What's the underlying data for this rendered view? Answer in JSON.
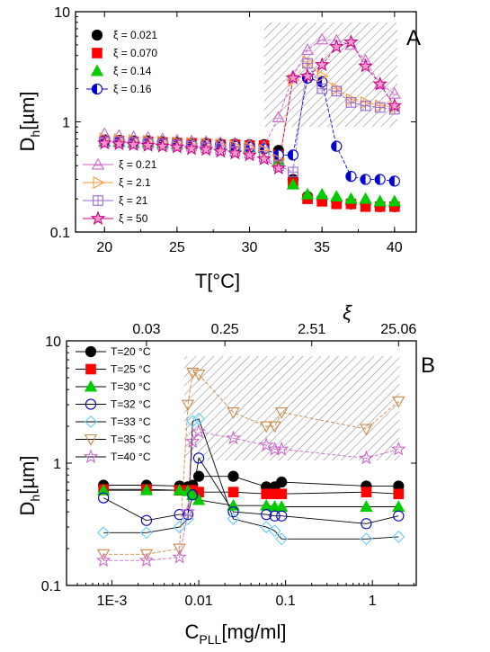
{
  "chart_data": [
    {
      "type": "scatter",
      "panel_label": "A",
      "xlabel": "T[°C]",
      "ylabel_main": "D",
      "ylabel_sub": "h",
      "ylabel_rest": "[µm]",
      "xlim": [
        18,
        41.5
      ],
      "ylim": [
        0.1,
        10
      ],
      "yscale": "log",
      "xticks": [
        20,
        25,
        30,
        35,
        40
      ],
      "xtick_labels": [
        "20",
        "25",
        "30",
        "35",
        "40"
      ],
      "yticks": [
        0.1,
        1,
        10
      ],
      "ytick_labels": [
        "0.1",
        "1",
        "10"
      ],
      "shaded_region": {
        "x": [
          31.0,
          40.2
        ],
        "y": [
          0.9,
          8.0
        ]
      },
      "legend_top": [
        0,
        1,
        2,
        3
      ],
      "legend_bottom": [
        4,
        5,
        6,
        7
      ],
      "series": [
        {
          "name": "ξ = 0.021",
          "marker": "circle",
          "color": "#000000",
          "fill": "#000000",
          "x": [
            20,
            21,
            22,
            23,
            24,
            25,
            26,
            27,
            28,
            29,
            30,
            31,
            32,
            33,
            34,
            35,
            36,
            37,
            38,
            39,
            40
          ],
          "y": [
            0.68,
            0.68,
            0.67,
            0.67,
            0.66,
            0.65,
            0.64,
            0.64,
            0.63,
            0.63,
            0.62,
            0.62,
            0.55,
            0.3,
            0.21,
            0.2,
            0.19,
            0.18,
            0.18,
            0.17,
            0.17
          ]
        },
        {
          "name": "ξ = 0.070",
          "marker": "square",
          "color": "#ff0000",
          "fill": "#ff0000",
          "x": [
            20,
            21,
            22,
            23,
            24,
            25,
            26,
            27,
            28,
            29,
            30,
            31,
            32,
            33,
            34,
            35,
            36,
            37,
            38,
            39,
            40
          ],
          "y": [
            0.67,
            0.67,
            0.66,
            0.66,
            0.65,
            0.64,
            0.64,
            0.63,
            0.62,
            0.62,
            0.61,
            0.61,
            0.5,
            0.28,
            0.2,
            0.19,
            0.18,
            0.18,
            0.17,
            0.17,
            0.17
          ]
        },
        {
          "name": "ξ = 0.14",
          "marker": "triangle",
          "color": "#00cc00",
          "fill": "#00cc00",
          "x": [
            20,
            21,
            22,
            23,
            24,
            25,
            26,
            27,
            28,
            29,
            30,
            31,
            32,
            33,
            34,
            35,
            36,
            37,
            38,
            39,
            40
          ],
          "y": [
            0.66,
            0.66,
            0.65,
            0.65,
            0.64,
            0.63,
            0.63,
            0.62,
            0.61,
            0.6,
            0.59,
            0.58,
            0.45,
            0.27,
            0.22,
            0.22,
            0.21,
            0.2,
            0.2,
            0.19,
            0.19
          ]
        },
        {
          "name": "ξ = 0.16",
          "marker": "halfcircle",
          "color": "#0000cc",
          "fill": "#0000cc",
          "x": [
            20,
            21,
            22,
            23,
            24,
            25,
            26,
            27,
            28,
            29,
            30,
            31,
            32,
            33,
            34,
            35,
            36,
            37,
            38,
            39,
            40
          ],
          "y": [
            0.67,
            0.66,
            0.66,
            0.65,
            0.64,
            0.63,
            0.62,
            0.62,
            0.61,
            0.6,
            0.59,
            0.57,
            0.5,
            0.5,
            2.5,
            2.3,
            0.6,
            0.32,
            0.3,
            0.3,
            0.29
          ]
        },
        {
          "name": "ξ = 0.21",
          "marker": "triangle-open",
          "color": "#cc66cc",
          "fill": "none",
          "x": [
            20,
            21,
            22,
            23,
            24,
            25,
            26,
            27,
            28,
            29,
            30,
            31,
            32,
            33,
            34,
            35,
            36,
            37,
            38,
            39,
            40
          ],
          "y": [
            0.78,
            0.75,
            0.73,
            0.72,
            0.7,
            0.68,
            0.67,
            0.66,
            0.65,
            0.64,
            0.62,
            0.6,
            1.1,
            2.6,
            4.5,
            5.6,
            5.5,
            5.0,
            3.6,
            2.2,
            1.8
          ]
        },
        {
          "name": "ξ = 2.1",
          "marker": "triangle-right-open",
          "color": "#ff9933",
          "fill": "none",
          "x": [
            20,
            21,
            22,
            23,
            24,
            25,
            26,
            27,
            28,
            29,
            30,
            31,
            32,
            33,
            34,
            35,
            36,
            37,
            38,
            39,
            40
          ],
          "y": [
            0.7,
            0.69,
            0.68,
            0.67,
            0.66,
            0.65,
            0.64,
            0.63,
            0.62,
            0.6,
            0.58,
            0.55,
            0.45,
            2.4,
            3.5,
            2.6,
            2.0,
            1.6,
            1.5,
            1.4,
            1.35
          ]
        },
        {
          "name": "ξ = 21",
          "marker": "square-cross",
          "color": "#9966cc",
          "fill": "none",
          "x": [
            20,
            21,
            22,
            23,
            24,
            25,
            26,
            27,
            28,
            29,
            30,
            31,
            32,
            33,
            34,
            35,
            36,
            37,
            38,
            39,
            40
          ],
          "y": [
            0.66,
            0.65,
            0.64,
            0.63,
            0.62,
            0.61,
            0.6,
            0.58,
            0.56,
            0.54,
            0.52,
            0.48,
            0.4,
            0.35,
            3.4,
            2.0,
            1.9,
            1.5,
            1.4,
            1.35,
            1.3
          ]
        },
        {
          "name": "ξ = 50",
          "marker": "star",
          "color": "#cc0088",
          "fill": "#ff99cc",
          "x": [
            20,
            21,
            22,
            23,
            24,
            25,
            26,
            27,
            28,
            29,
            30,
            31,
            32,
            33,
            34,
            35,
            36,
            37,
            38,
            39,
            40
          ],
          "y": [
            0.64,
            0.63,
            0.62,
            0.61,
            0.6,
            0.59,
            0.57,
            0.56,
            0.54,
            0.52,
            0.5,
            0.46,
            0.38,
            2.5,
            2.6,
            3.3,
            4.8,
            5.3,
            3.2,
            2.2,
            1.4
          ]
        }
      ]
    },
    {
      "type": "scatter",
      "panel_label": "B",
      "xlabel_main": "C",
      "xlabel_sub": "PLL",
      "xlabel_rest": "[mg/ml]",
      "top_axis_label": "ξ",
      "ylabel_main": "D",
      "ylabel_sub": "h",
      "ylabel_rest": "[µm]",
      "xlim": [
        0.0003,
        3.2
      ],
      "ylim": [
        0.1,
        10
      ],
      "xscale": "log",
      "yscale": "log",
      "xticks": [
        0.001,
        0.01,
        0.1,
        1
      ],
      "xtick_labels": [
        "1E-3",
        "0.01",
        "0.1",
        "1"
      ],
      "yticks": [
        0.1,
        1,
        10
      ],
      "ytick_labels": [
        "0.1",
        "1",
        "10"
      ],
      "top_ticks": [
        0.0025,
        0.02,
        0.2,
        2.0
      ],
      "top_tick_labels": [
        "0.03",
        "0.25",
        "2.51",
        "25.06"
      ],
      "shaded_region": {
        "x": [
          0.0068,
          2.05
        ],
        "y": [
          1.05,
          7.5
        ]
      },
      "series": [
        {
          "name": "T=20 °C",
          "marker": "circle",
          "color": "#000000",
          "fill": "#000000",
          "x": [
            0.0008,
            0.0025,
            0.006,
            0.0075,
            0.0085,
            0.01,
            0.025,
            0.06,
            0.075,
            0.09,
            0.85,
            2.0
          ],
          "y": [
            0.66,
            0.66,
            0.65,
            0.64,
            0.66,
            0.78,
            0.78,
            0.64,
            0.64,
            0.7,
            0.65,
            0.65
          ]
        },
        {
          "name": "T=25 °C",
          "marker": "square",
          "color": "#ff0000",
          "fill": "#ff0000",
          "x": [
            0.0008,
            0.0025,
            0.006,
            0.0075,
            0.0085,
            0.01,
            0.025,
            0.06,
            0.075,
            0.09,
            0.85,
            2.0
          ],
          "y": [
            0.61,
            0.61,
            0.6,
            0.6,
            0.6,
            0.58,
            0.58,
            0.56,
            0.56,
            0.56,
            0.58,
            0.56
          ]
        },
        {
          "name": "T=30 °C",
          "marker": "triangle",
          "color": "#00cc00",
          "fill": "#00cc00",
          "x": [
            0.0008,
            0.0025,
            0.006,
            0.0075,
            0.0085,
            0.01,
            0.025,
            0.06,
            0.075,
            0.09,
            0.85,
            2.0
          ],
          "y": [
            0.6,
            0.6,
            0.6,
            0.59,
            0.55,
            0.5,
            0.45,
            0.45,
            0.44,
            0.44,
            0.44,
            0.44
          ]
        },
        {
          "name": "T=32 °C",
          "marker": "circle-open",
          "color": "#0000cc",
          "fill": "none",
          "x": [
            0.0008,
            0.0025,
            0.006,
            0.0075,
            0.0085,
            0.01,
            0.025,
            0.06,
            0.075,
            0.09,
            0.85,
            2.0
          ],
          "y": [
            0.52,
            0.34,
            0.38,
            0.38,
            0.55,
            1.1,
            0.4,
            0.38,
            0.37,
            0.37,
            0.32,
            0.37
          ]
        },
        {
          "name": "T=33 °C",
          "marker": "diamond-open",
          "color": "#66ccff",
          "fill": "none",
          "x": [
            0.0008,
            0.0025,
            0.006,
            0.0075,
            0.0085,
            0.01,
            0.025,
            0.06,
            0.075,
            0.09,
            0.85,
            2.0
          ],
          "y": [
            0.27,
            0.27,
            0.3,
            0.35,
            2.2,
            2.3,
            0.35,
            0.3,
            0.28,
            0.24,
            0.24,
            0.25
          ]
        },
        {
          "name": "T=35 °C",
          "marker": "triangle-down-open",
          "color": "#cc8844",
          "fill": "none",
          "x": [
            0.0008,
            0.0025,
            0.006,
            0.0075,
            0.0085,
            0.01,
            0.025,
            0.06,
            0.075,
            0.09,
            0.85,
            2.0
          ],
          "y": [
            0.18,
            0.18,
            0.2,
            3.0,
            5.5,
            5.3,
            2.6,
            2.0,
            2.0,
            2.6,
            1.9,
            3.2
          ]
        },
        {
          "name": "T=40 °C",
          "marker": "star-open",
          "color": "#cc66cc",
          "fill": "none",
          "x": [
            0.0008,
            0.0025,
            0.006,
            0.0075,
            0.0085,
            0.01,
            0.025,
            0.06,
            0.075,
            0.09,
            0.85,
            2.0
          ],
          "y": [
            0.16,
            0.16,
            0.17,
            0.4,
            1.5,
            1.8,
            1.6,
            1.4,
            1.3,
            1.3,
            1.1,
            1.3
          ]
        }
      ]
    }
  ]
}
